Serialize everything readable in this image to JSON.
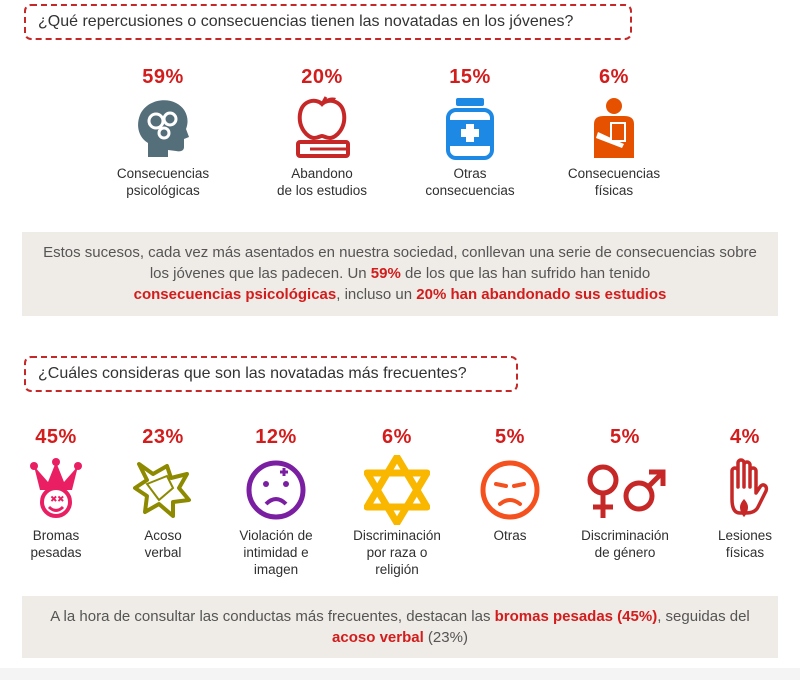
{
  "section1": {
    "question": "¿Qué repercusiones o consecuencias tienen las novatadas en los jóvenes?",
    "summary": {
      "part1": "Estos sucesos, cada vez más asentados en nuestra sociedad, conllevan una serie de consecuencias sobre los jóvenes que las padecen. Un ",
      "hl1": "59%",
      "part2": " de los que las han sufrido han tenido ",
      "hl2": "consecuencias psicológicas",
      "part3": ", incluso un ",
      "hl3": "20% han abandonado sus estudios"
    }
  },
  "section2": {
    "question": "¿Cuáles consideras que son las novatadas más frecuentes?",
    "summary": {
      "part1": "A la hora de consultar las conductas más frecuentes, destacan las ",
      "hl1": "bromas pesadas (45%)",
      "part2": ", seguidas del ",
      "hl2": "acoso verbal",
      "part3": " (23%)"
    }
  },
  "chart_data": [
    {
      "type": "table",
      "title": "¿Qué repercusiones o consecuencias tienen las novatadas en los jóvenes?",
      "categories": [
        "Consecuencias psicológicas",
        "Abandono de los estudios",
        "Otras consecuencias",
        "Consecuencias físicas"
      ],
      "values": [
        59,
        20,
        15,
        6
      ],
      "value_labels": [
        "59%",
        "20%",
        "15%",
        "6%"
      ],
      "label_lines": [
        [
          "Consecuencias",
          "psicológicas"
        ],
        [
          "Abandono",
          "de los estudios"
        ],
        [
          "Otras",
          "consecuencias"
        ],
        [
          "Consecuencias",
          "físicas"
        ]
      ],
      "icons": [
        "head-gears-icon",
        "apple-book-icon",
        "medicine-bottle-icon",
        "injured-arm-icon"
      ],
      "colors": [
        "#546e7a",
        "#c62828",
        "#1e88e5",
        "#e65100"
      ]
    },
    {
      "type": "table",
      "title": "¿Cuáles consideras que son las novatadas más frecuentes?",
      "categories": [
        "Bromas pesadas",
        "Acoso verbal",
        "Violación de intimidad e imagen",
        "Discriminación por raza o religión",
        "Otras",
        "Discriminación de género",
        "Lesiones físicas"
      ],
      "values": [
        45,
        23,
        12,
        6,
        5,
        5,
        4
      ],
      "value_labels": [
        "45%",
        "23%",
        "12%",
        "6%",
        "5%",
        "5%",
        "4%"
      ],
      "label_lines": [
        [
          "Bromas",
          "pesadas"
        ],
        [
          "Acoso",
          "verbal"
        ],
        [
          "Violación de",
          "intimidad e",
          "imagen"
        ],
        [
          "Discriminación",
          "por raza o",
          "religión"
        ],
        [
          "Otras"
        ],
        [
          "Discriminación",
          "de género"
        ],
        [
          "Lesiones",
          "físicas"
        ]
      ],
      "icons": [
        "jester-icon",
        "speech-burst-icon",
        "sad-face-icon",
        "star-of-david-icon",
        "frown-face-icon",
        "gender-symbols-icon",
        "bleeding-hand-icon"
      ],
      "colors": [
        "#e91e63",
        "#8d8a00",
        "#7b1fa2",
        "#f9b700",
        "#f4511e",
        "#c62828",
        "#c62828"
      ]
    }
  ]
}
